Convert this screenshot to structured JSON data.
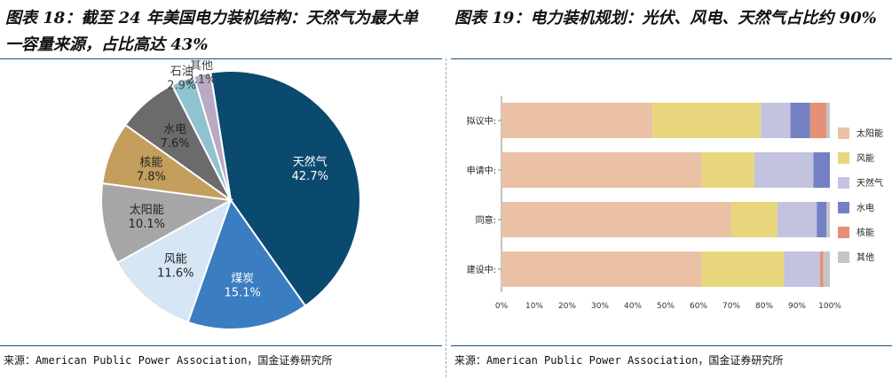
{
  "left": {
    "title_line1": "图表 18：截至 24 年美国电力装机结构：天然气为最大单",
    "title_line2": "一容量来源，占比高达 43%",
    "source": "来源：American Public Power Association，国金证券研究所"
  },
  "right": {
    "title": "图表 19：电力装机规划：光伏、风电、天然气占比约 90%",
    "source": "来源：American Public Power Association，国金证券研究所"
  },
  "chart_data": [
    {
      "type": "pie",
      "slices": [
        {
          "label": "天然气",
          "value": 42.7,
          "display": "42.7%",
          "color": "#0b4a6f"
        },
        {
          "label": "煤炭",
          "value": 15.1,
          "display": "15.1%",
          "color": "#3a7dc1"
        },
        {
          "label": "风能",
          "value": 11.6,
          "display": "11.6%",
          "color": "#d6e6f4"
        },
        {
          "label": "太阳能",
          "value": 10.1,
          "display": "10.1%",
          "color": "#a6a6a6"
        },
        {
          "label": "核能",
          "value": 7.8,
          "display": "7.8%",
          "color": "#c39e5c"
        },
        {
          "label": "水电",
          "value": 7.6,
          "display": "7.6%",
          "color": "#6b6b6b"
        },
        {
          "label": "石油",
          "value": 2.9,
          "display": "2.9%",
          "color": "#8fc3cf"
        },
        {
          "label": "其他",
          "value": 2.1,
          "display": "2.1%",
          "color": "#b9a9c2"
        }
      ]
    },
    {
      "type": "bar",
      "orientation": "horizontal",
      "stacked": "percent",
      "categories": [
        "拟议中:",
        "申请中:",
        "同意:",
        "建设中:"
      ],
      "series": [
        {
          "name": "太阳能",
          "color": "#ebc1a6",
          "values": [
            46,
            61,
            70,
            61
          ]
        },
        {
          "name": "风能",
          "color": "#e8d67d",
          "values": [
            33,
            16,
            14,
            25
          ]
        },
        {
          "name": "天然气",
          "color": "#c3c3e0",
          "values": [
            9,
            18,
            12,
            11
          ]
        },
        {
          "name": "水电",
          "color": "#7480c4",
          "values": [
            6,
            5,
            3,
            0
          ]
        },
        {
          "name": "核能",
          "color": "#e59077",
          "values": [
            5,
            0,
            0,
            1
          ]
        },
        {
          "name": "其他",
          "color": "#c5c5c5",
          "values": [
            1,
            0,
            1,
            2
          ]
        }
      ],
      "xlim": [
        0,
        100
      ],
      "xticks": [
        "0%",
        "10%",
        "20%",
        "30%",
        "40%",
        "50%",
        "60%",
        "70%",
        "80%",
        "90%",
        "100%"
      ],
      "legend": "right"
    }
  ]
}
